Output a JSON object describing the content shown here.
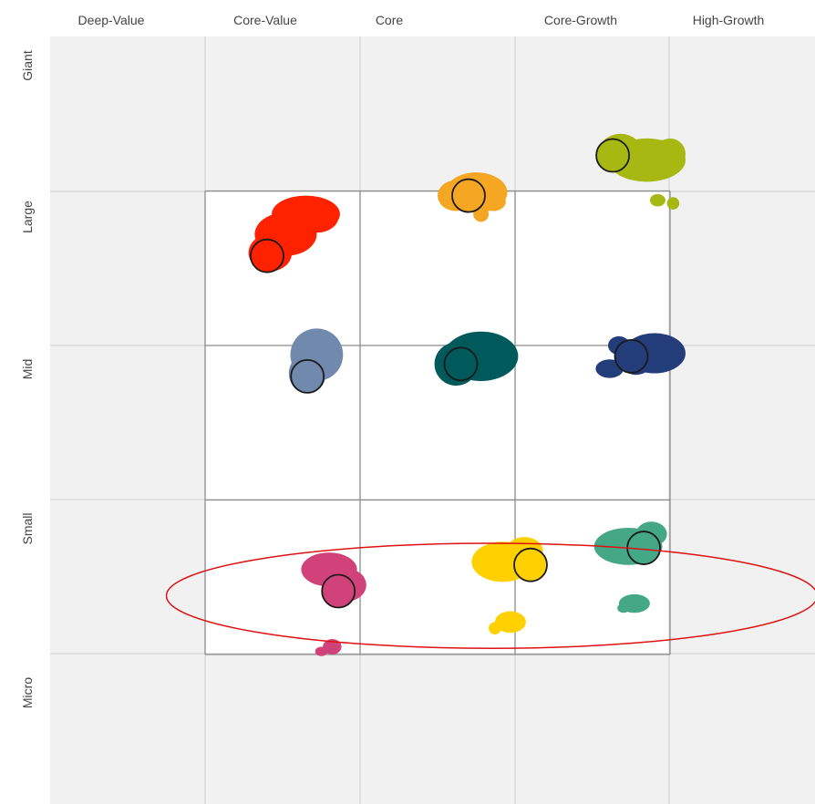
{
  "chart_data": {
    "type": "scatter",
    "title": "",
    "xlabel": "",
    "ylabel": "",
    "x_categories": [
      "Deep-Value",
      "Core-Value",
      "Core",
      "Core-Growth",
      "High-Growth"
    ],
    "y_categories": [
      "Giant",
      "Large",
      "Mid",
      "Small",
      "Micro"
    ],
    "xlim": [
      0,
      5
    ],
    "ylim": [
      0,
      5
    ],
    "background_color": "#f1f1f1",
    "highlight_box_color": "#ffffff",
    "highlight_box": {
      "x": [
        1,
        4
      ],
      "y": [
        1,
        4
      ]
    },
    "grid": true,
    "annotation_ellipse": {
      "cx": 2.85,
      "cy": 1.38,
      "rx": 2.1,
      "ry": 0.34,
      "color": "#dd1111"
    },
    "series": [
      {
        "color": "#ff2200",
        "centroid": [
          1.4,
          3.58
        ],
        "blobs": [
          [
            1.65,
            3.85,
            0.22,
            0.12
          ],
          [
            1.52,
            3.72,
            0.2,
            0.14
          ],
          [
            1.42,
            3.6,
            0.14,
            0.12
          ],
          [
            1.72,
            3.83,
            0.14,
            0.1
          ]
        ]
      },
      {
        "color": "#f5a623",
        "centroid": [
          2.7,
          3.97
        ],
        "blobs": [
          [
            2.75,
            3.99,
            0.2,
            0.13
          ],
          [
            2.62,
            3.97,
            0.12,
            0.1
          ],
          [
            2.86,
            3.93,
            0.08,
            0.06
          ],
          [
            2.78,
            3.85,
            0.05,
            0.05
          ]
        ]
      },
      {
        "color": "#a6b811",
        "centroid": [
          3.63,
          4.23
        ],
        "blobs": [
          [
            3.85,
            4.2,
            0.25,
            0.14
          ],
          [
            3.68,
            4.25,
            0.14,
            0.12
          ],
          [
            4.0,
            4.24,
            0.1,
            0.1
          ],
          [
            3.92,
            3.94,
            0.05,
            0.04
          ],
          [
            4.02,
            3.92,
            0.04,
            0.04
          ]
        ]
      },
      {
        "color": "#7189ad",
        "centroid": [
          1.66,
          2.8
        ],
        "blobs": [
          [
            1.72,
            2.94,
            0.17,
            0.17
          ],
          [
            1.66,
            2.82,
            0.12,
            0.13
          ]
        ]
      },
      {
        "color": "#005a5b",
        "centroid": [
          2.65,
          2.88
        ],
        "blobs": [
          [
            2.78,
            2.93,
            0.24,
            0.16
          ],
          [
            2.62,
            2.88,
            0.14,
            0.14
          ]
        ]
      },
      {
        "color": "#233c7a",
        "centroid": [
          3.75,
          2.93
        ],
        "blobs": [
          [
            3.9,
            2.95,
            0.2,
            0.13
          ],
          [
            3.67,
            3.0,
            0.07,
            0.06
          ],
          [
            3.61,
            2.85,
            0.09,
            0.06
          ],
          [
            3.78,
            2.92,
            0.12,
            0.11
          ]
        ]
      },
      {
        "color": "#d2427a",
        "centroid": [
          1.86,
          1.41
        ],
        "blobs": [
          [
            1.8,
            1.55,
            0.18,
            0.11
          ],
          [
            1.9,
            1.45,
            0.14,
            0.11
          ],
          [
            1.82,
            1.05,
            0.06,
            0.05
          ],
          [
            1.75,
            1.02,
            0.04,
            0.03
          ]
        ]
      },
      {
        "color": "#ffd000",
        "centroid": [
          3.1,
          1.58
        ],
        "blobs": [
          [
            2.92,
            1.6,
            0.2,
            0.13
          ],
          [
            3.06,
            1.67,
            0.12,
            0.09
          ],
          [
            2.97,
            1.21,
            0.1,
            0.07
          ],
          [
            2.87,
            1.17,
            0.04,
            0.04
          ]
        ]
      },
      {
        "color": "#44a886",
        "centroid": [
          3.83,
          1.69
        ],
        "blobs": [
          [
            3.73,
            1.7,
            0.22,
            0.12
          ],
          [
            3.88,
            1.78,
            0.1,
            0.08
          ],
          [
            3.77,
            1.33,
            0.1,
            0.06
          ],
          [
            3.7,
            1.3,
            0.04,
            0.03
          ]
        ]
      }
    ]
  }
}
